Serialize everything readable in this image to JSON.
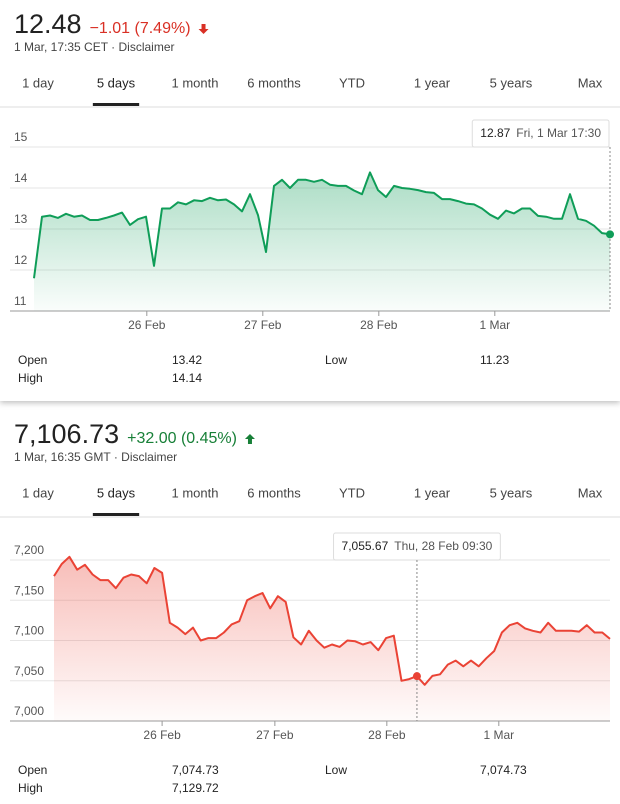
{
  "panels": [
    {
      "price": "12.48",
      "change": "−1.01 (7.49%)",
      "change_color": "#d93025",
      "timestamp": "1 Mar, 17:35 CET · Disclaimer",
      "tabs": [
        "1 day",
        "5 days",
        "1 month",
        "6 months",
        "YTD",
        "1 year",
        "5 years",
        "Max"
      ],
      "active_tab": 1,
      "chart": {
        "type": "line",
        "color": "#0f9d58",
        "fill": "#0f9d58",
        "values": [
          11.8,
          13.3,
          13.33,
          13.27,
          13.37,
          13.3,
          13.33,
          13.22,
          13.22,
          13.27,
          13.33,
          13.4,
          13.1,
          13.24,
          13.3,
          12.1,
          13.5,
          13.5,
          13.65,
          13.6,
          13.7,
          13.68,
          13.76,
          13.7,
          13.72,
          13.6,
          13.43,
          13.85,
          13.34,
          12.44,
          14.05,
          14.2,
          14.0,
          14.2,
          14.2,
          14.15,
          14.2,
          14.08,
          14.05,
          14.05,
          13.94,
          13.85,
          14.38,
          13.95,
          13.78,
          14.05,
          14.0,
          13.98,
          13.95,
          13.9,
          13.88,
          13.73,
          13.73,
          13.68,
          13.62,
          13.6,
          13.5,
          13.35,
          13.25,
          13.45,
          13.38,
          13.5,
          13.5,
          13.32,
          13.3,
          13.25,
          13.25,
          13.85,
          13.25,
          13.2,
          13.08,
          12.9,
          12.87
        ],
        "ylim": [
          11,
          15
        ],
        "yticks": [
          11,
          12,
          13,
          14,
          15
        ],
        "xticks": [
          {
            "value": 14.1,
            "label": "26 Feb"
          },
          {
            "value": 28.6,
            "label": "27 Feb"
          },
          {
            "value": 43.1,
            "label": "28 Feb"
          },
          {
            "value": 57.6,
            "label": "1 Mar"
          }
        ],
        "tooltip": {
          "value": 12.87,
          "time": "Fri, 1 Mar 17:30"
        }
      },
      "stats": [
        [
          {
            "label": "Open",
            "value": "13.42"
          },
          {
            "label": "Low",
            "value": "11.23"
          }
        ],
        [
          {
            "label": "High",
            "value": "14.14"
          }
        ]
      ]
    },
    {
      "price": "7,106.73",
      "change": "+32.00 (0.45%)",
      "change_color": "#188038",
      "timestamp": "1 Mar, 16:35 GMT · Disclaimer",
      "tabs": [
        "1 day",
        "5 days",
        "1 month",
        "6 months",
        "YTD",
        "1 year",
        "5 years",
        "Max"
      ],
      "active_tab": 1,
      "chart": {
        "type": "line",
        "color": "#ea4335",
        "fill": "#ea4335",
        "values": [
          7180,
          7195,
          7204,
          7188,
          7194,
          7182,
          7175,
          7175,
          7165,
          7178,
          7182,
          7180,
          7171,
          7190,
          7184,
          7122,
          7116,
          7108,
          7116,
          7100,
          7103,
          7103,
          7110,
          7120,
          7124,
          7150,
          7155,
          7159,
          7140,
          7155,
          7148,
          7104,
          7095,
          7112,
          7100,
          7091,
          7095,
          7092,
          7100,
          7099,
          7095,
          7098,
          7088,
          7103,
          7106,
          7050,
          7052,
          7055.67,
          7045,
          7056,
          7058,
          7070,
          7075,
          7068,
          7075,
          7068,
          7078,
          7087,
          7110,
          7119,
          7122,
          7115,
          7112,
          7110,
          7122,
          7112,
          7112,
          7112,
          7111,
          7119,
          7110,
          7110,
          7102
        ],
        "ylim": [
          7000,
          7200
        ],
        "yticks": [
          {
            "value": 7000,
            "label": "7,000"
          },
          {
            "value": 7050,
            "label": "7,050"
          },
          {
            "value": 7100,
            "label": "7,100"
          },
          {
            "value": 7150,
            "label": "7,150"
          },
          {
            "value": 7200,
            "label": "7,200"
          }
        ],
        "xticks": [
          {
            "value": 14.0,
            "label": "26 Feb"
          },
          {
            "value": 28.6,
            "label": "27 Feb"
          },
          {
            "value": 43.1,
            "label": "28 Feb"
          },
          {
            "value": 57.6,
            "label": "1 Mar"
          }
        ],
        "tooltip": {
          "value": {
            "value": 7055.67,
            "label": "7,055.67"
          },
          "time": "Thu, 28 Feb 09:30"
        }
      },
      "stats": [
        [
          {
            "label": "Open",
            "value": "7,074.73"
          },
          {
            "label": "Low",
            "value": "7,074.73"
          }
        ],
        [
          {
            "label": "High",
            "value": "7,129.72"
          }
        ]
      ]
    }
  ]
}
